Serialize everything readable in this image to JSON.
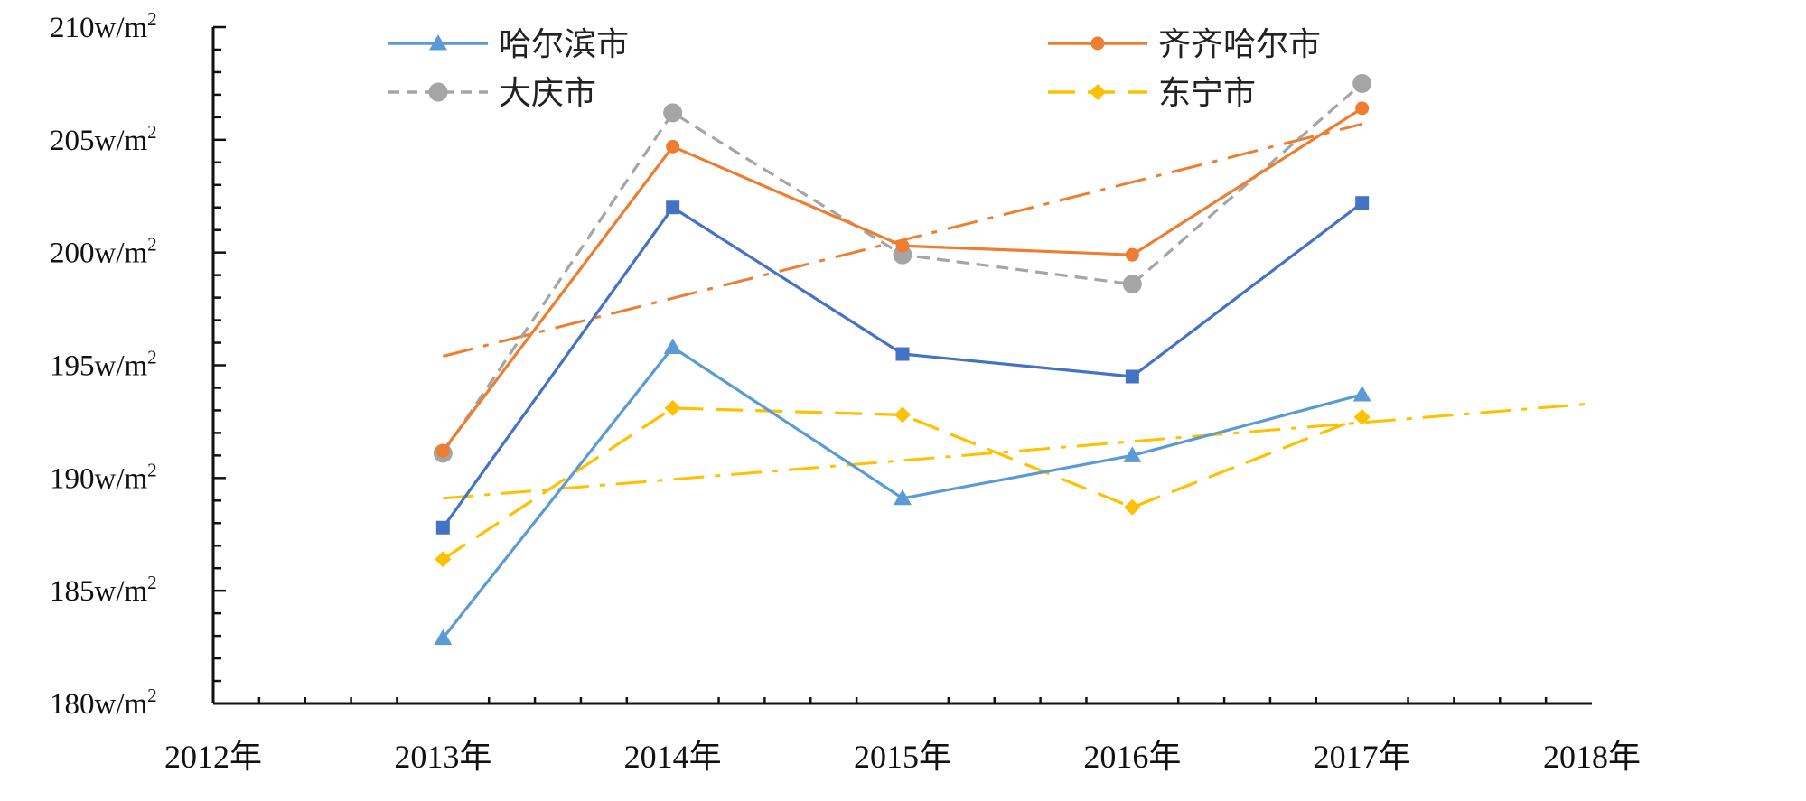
{
  "chart_data": {
    "type": "line",
    "title": "",
    "xlabel": "",
    "ylabel": "",
    "x_categories": [
      "2012年",
      "2013年",
      "2014年",
      "2015年",
      "2016年",
      "2017年",
      "2018年"
    ],
    "x_range": [
      2012,
      2018
    ],
    "ylim": [
      180,
      210
    ],
    "y_ticks": [
      {
        "value": 210,
        "base": "210w/m",
        "sup": "2"
      },
      {
        "value": 205,
        "base": "205w/m",
        "sup": "2"
      },
      {
        "value": 200,
        "base": "200w/m",
        "sup": "2"
      },
      {
        "value": 195,
        "base": "195w/m",
        "sup": "2"
      },
      {
        "value": 190,
        "base": "190w/m",
        "sup": "2"
      },
      {
        "value": 185,
        "base": "185w/m",
        "sup": "2"
      },
      {
        "value": 180,
        "base": "180w/m",
        "sup": "2"
      }
    ],
    "grid": false,
    "legend_position": "top",
    "series": [
      {
        "name": "哈尔滨市",
        "color": "#5b9bd5",
        "marker": "triangle",
        "dash": "solid",
        "x": [
          2013,
          2014,
          2015,
          2016,
          2017
        ],
        "values": [
          182.9,
          195.8,
          189.1,
          191.0,
          193.7
        ]
      },
      {
        "name": "齐齐哈尔市",
        "color": "#ed7d31",
        "marker": "circle",
        "dash": "solid",
        "x": [
          2013,
          2014,
          2015,
          2016,
          2017
        ],
        "values": [
          191.2,
          204.7,
          200.3,
          199.9,
          206.4
        ]
      },
      {
        "name": "大庆市",
        "color": "#a5a5a5",
        "marker": "circle-large",
        "dash": "dash",
        "x": [
          2013,
          2014,
          2015,
          2016,
          2017
        ],
        "values": [
          191.1,
          206.2,
          199.9,
          198.6,
          207.5
        ]
      },
      {
        "name": "东宁市",
        "color": "#ffc000",
        "marker": "diamond",
        "dash": "longdash",
        "x": [
          2013,
          2014,
          2015,
          2016,
          2017
        ],
        "values": [
          186.4,
          193.1,
          192.8,
          188.7,
          192.7
        ]
      }
    ],
    "unlabeled_series": [
      {
        "color": "#4472c4",
        "marker": "square",
        "dash": "solid",
        "x": [
          2013,
          2014,
          2015,
          2016,
          2017
        ],
        "values": [
          187.8,
          202.0,
          195.5,
          194.5,
          202.2
        ]
      }
    ],
    "trendlines": [
      {
        "color": "#ed7d31",
        "dash": "dashdot",
        "x": [
          2013,
          2017.0
        ],
        "values": [
          195.4,
          205.7
        ]
      },
      {
        "color": "#ffc000",
        "dash": "dashdot",
        "x": [
          2013,
          2018
        ],
        "values": [
          189.1,
          193.3
        ]
      }
    ]
  }
}
